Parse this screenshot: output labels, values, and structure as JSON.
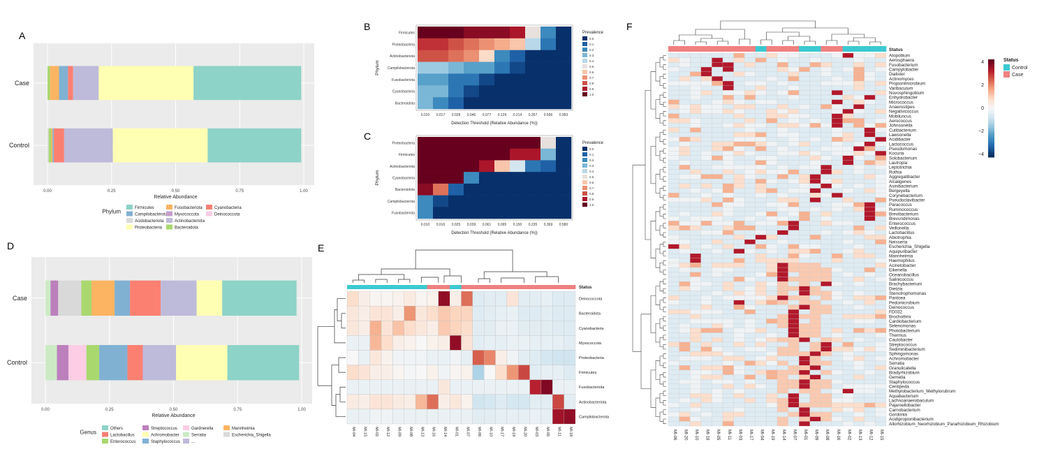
{
  "panel_labels": {
    "a": "A",
    "b": "B",
    "c": "C",
    "d": "D",
    "e": "E",
    "f": "F"
  },
  "chart_data": [
    {
      "id": "A",
      "type": "bar",
      "orientation": "horizontal",
      "stacked": true,
      "categories": [
        "Case",
        "Control"
      ],
      "xlabel": "Relative Abundance",
      "xlim": [
        0,
        1
      ],
      "xticks": [
        "0.00",
        "0.25",
        "0.50",
        "0.75",
        "1.00"
      ],
      "legend_title": "Phylum",
      "legend_placement": "bottom",
      "series": [
        {
          "name": "Acidobacteriota",
          "color": "#d9d9d9",
          "values": [
            0.0,
            0.005
          ]
        },
        {
          "name": "Myxococcota",
          "color": "#c6a0cf",
          "values": [
            0.0,
            0.0
          ]
        },
        {
          "name": "Bacteroidota",
          "color": "#a9d86e",
          "values": [
            0.01,
            0.01
          ]
        },
        {
          "name": "Fusobacteriota",
          "color": "#fdb462",
          "values": [
            0.035,
            0.005
          ]
        },
        {
          "name": "Campilobacterota",
          "color": "#80b1d3",
          "values": [
            0.035,
            0.005
          ]
        },
        {
          "name": "Cyanobacteria",
          "color": "#fb8072",
          "values": [
            0.02,
            0.04
          ]
        },
        {
          "name": "Actinobacteriota",
          "color": "#bebada",
          "values": [
            0.1,
            0.19
          ]
        },
        {
          "name": "Proteobacteria",
          "color": "#ffffb3",
          "values": [
            0.37,
            0.37
          ]
        },
        {
          "name": "Firmicutes",
          "color": "#8dd3c7",
          "values": [
            0.42,
            0.365
          ]
        }
      ],
      "legend_order": [
        "Firmicutes",
        "Campilobacterota",
        "Acidobacteriota",
        "Proteobacteria",
        "Fusobacteriota",
        "Myxococcota",
        "Actinobacteriota",
        "Bacteroidota",
        "Cyanobacteria",
        "Deinococcota"
      ],
      "legend_colors": {
        "Firmicutes": "#8dd3c7",
        "Campilobacterota": "#80b1d3",
        "Acidobacteriota": "#d9d9d9",
        "Proteobacteria": "#ffffb3",
        "Fusobacteriota": "#fdb462",
        "Myxococcota": "#c6a0cf",
        "Actinobacteriota": "#bebada",
        "Bacteroidota": "#a9d86e",
        "Cyanobacteria": "#fb8072",
        "Deinococcota": "#fccde5"
      }
    },
    {
      "id": "B",
      "type": "heatmap",
      "ylabel": "Phylum",
      "xlabel": "Detection Threshold (Relative Abundance (%))",
      "rows": [
        "Firmicutes",
        "Proteobacteria",
        "Actinobacteriota",
        "Campilobacterota",
        "Fusobacteriota",
        "Cyanobacteria",
        "Bacteroidota"
      ],
      "cols": [
        "0.010",
        "0.017",
        "0.028",
        "0.046",
        "0.077",
        "0.129",
        "0.214",
        "0.357",
        "0.596",
        "0.993"
      ],
      "legend_title": "Prevalence",
      "legend_ticks": [
        "0.0",
        "0.1",
        "0.2",
        "0.3",
        "0.4",
        "0.5",
        "0.6",
        "0.7",
        "0.8",
        "0.9",
        "1.0"
      ],
      "values": [
        [
          1.0,
          1.0,
          1.0,
          0.95,
          0.95,
          0.95,
          0.9,
          0.5,
          0.2,
          0.0
        ],
        [
          0.85,
          0.85,
          0.8,
          0.75,
          0.7,
          0.65,
          0.6,
          0.4,
          0.15,
          0.0
        ],
        [
          0.8,
          0.8,
          0.75,
          0.7,
          0.55,
          0.2,
          0.1,
          0.0,
          0.0,
          0.0
        ],
        [
          0.35,
          0.35,
          0.3,
          0.25,
          0.25,
          0.15,
          0.05,
          0.0,
          0.0,
          0.0
        ],
        [
          0.25,
          0.25,
          0.15,
          0.15,
          0.05,
          0.0,
          0.0,
          0.0,
          0.0,
          0.0
        ],
        [
          0.3,
          0.3,
          0.15,
          0.05,
          0.0,
          0.0,
          0.0,
          0.0,
          0.0,
          0.0
        ],
        [
          0.3,
          0.2,
          0.1,
          0.0,
          0.0,
          0.0,
          0.0,
          0.0,
          0.0,
          0.0
        ]
      ]
    },
    {
      "id": "C",
      "type": "heatmap",
      "ylabel": "Phylum",
      "xlabel": "Detection Threshold (Relative Abundance (%))",
      "rows": [
        "Proteobacteria",
        "Firmicutes",
        "Actinobacteriota",
        "Cyanobacteria",
        "Bacteroidota",
        "Campilobacterota",
        "Fusobacteriota"
      ],
      "cols": [
        "0.010",
        "0.016",
        "0.025",
        "0.039",
        "0.061",
        "0.095",
        "0.150",
        "0.235",
        "0.369",
        "0.580"
      ],
      "legend_title": "Prevalence",
      "legend_ticks": [
        "0.0",
        "0.1",
        "0.2",
        "0.3",
        "0.4",
        "0.5",
        "0.6",
        "0.7",
        "0.8",
        "0.9",
        "1.0"
      ],
      "values": [
        [
          1.0,
          1.0,
          1.0,
          1.0,
          1.0,
          1.0,
          1.0,
          1.0,
          0.5,
          0.0
        ],
        [
          1.0,
          1.0,
          1.0,
          1.0,
          1.0,
          1.0,
          0.9,
          0.9,
          0.3,
          0.0
        ],
        [
          1.0,
          1.0,
          1.0,
          1.0,
          0.9,
          0.6,
          0.45,
          0.15,
          0.1,
          0.0
        ],
        [
          1.0,
          1.0,
          1.0,
          0.2,
          0.0,
          0.0,
          0.0,
          0.0,
          0.0,
          0.0
        ],
        [
          0.95,
          0.75,
          0.1,
          0.0,
          0.0,
          0.0,
          0.0,
          0.0,
          0.0,
          0.0
        ],
        [
          0.2,
          0.05,
          0.0,
          0.0,
          0.0,
          0.0,
          0.0,
          0.0,
          0.0,
          0.0
        ],
        [
          0.2,
          0.0,
          0.0,
          0.0,
          0.0,
          0.0,
          0.0,
          0.0,
          0.0,
          0.0
        ]
      ]
    },
    {
      "id": "D",
      "type": "bar",
      "orientation": "horizontal",
      "stacked": true,
      "categories": [
        "Case",
        "Control"
      ],
      "xlabel": "Relative Abundance",
      "xlim": [
        0,
        1
      ],
      "xticks": [
        "0.00",
        "0.25",
        "0.50",
        "0.75",
        "1.00"
      ],
      "legend_title": "Genus",
      "legend_placement": "bottom",
      "series": [
        {
          "name": "Serratia",
          "color": "#ccebc5",
          "values": [
            0.02,
            0.045
          ]
        },
        {
          "name": "Streptococcus",
          "color": "#bc80bd",
          "values": [
            0.03,
            0.045
          ]
        },
        {
          "name": "Escherichia_Shigella",
          "color": "#d9d9d9",
          "values": [
            0.09,
            0.0
          ]
        },
        {
          "name": "Gardnerella",
          "color": "#fccde5",
          "values": [
            0.0,
            0.07
          ]
        },
        {
          "name": "Enterococcus",
          "color": "#a9d86e",
          "values": [
            0.04,
            0.05
          ]
        },
        {
          "name": "Mannheimia",
          "color": "#fdb462",
          "values": [
            0.09,
            0.0
          ]
        },
        {
          "name": "Staphylococcus",
          "color": "#80b1d3",
          "values": [
            0.06,
            0.11
          ]
        },
        {
          "name": "Lactobacillus",
          "color": "#fb8072",
          "values": [
            0.12,
            0.06
          ]
        },
        {
          "name": "...",
          "color": "#bebada",
          "values": [
            0.14,
            0.13
          ]
        },
        {
          "name": "Achromobacter",
          "color": "#ffffb3",
          "values": [
            0.1,
            0.2
          ]
        },
        {
          "name": "Others",
          "color": "#8dd3c7",
          "values": [
            0.29,
            0.28
          ]
        }
      ],
      "legend_order": [
        "Others",
        "Lactobacillus",
        "Enterococcus",
        "Streptococcus",
        "Achromobacter",
        "Staphylococcus",
        "Gardnerella",
        "Serratia",
        "...",
        "Mannheimia",
        "Escherichia_Shigella"
      ],
      "legend_colors": {
        "Others": "#8dd3c7",
        "Lactobacillus": "#fb8072",
        "Enterococcus": "#a9d86e",
        "Streptococcus": "#bc80bd",
        "Achromobacter": "#ffffb3",
        "Staphylococcus": "#80b1d3",
        "Gardnerella": "#fccde5",
        "Serratia": "#ccebc5",
        "...": "#bebada",
        "Mannheimia": "#fdb462",
        "Escherichia_Shigella": "#d9d9d9"
      }
    },
    {
      "id": "E",
      "type": "heatmap",
      "annotation_label": "Status",
      "rows": [
        "Deinococcota",
        "Bacteroidota",
        "Cyanobacteria",
        "Myxococcota",
        "Proteobacteria",
        "Firmicutes",
        "Fusobacteriota",
        "Actinobacteriota",
        "Campilobacterota"
      ],
      "cols": [
        "MI-04",
        "MI-15",
        "MI-02",
        "MI-12",
        "MI-09",
        "MI-08",
        "MI-13",
        "MI-16",
        "MI-14",
        "MI-01",
        "MI-07",
        "MI-06",
        "MI-10",
        "MI-17",
        "MI-19",
        "MI-20",
        "MI-03",
        "MI-05",
        "MI-11",
        "MI-18"
      ],
      "status": [
        "Control",
        "Control",
        "Control",
        "Control",
        "Control",
        "Control",
        "Control",
        "Case",
        "Case",
        "Control",
        "Case",
        "Case",
        "Case",
        "Case",
        "Case",
        "Case",
        "Case",
        "Case",
        "Case",
        "Case"
      ],
      "values": [
        [
          0.8,
          0.3,
          0.1,
          0.1,
          0.2,
          0.4,
          0.1,
          0.2,
          4.0,
          0.3,
          2.5,
          -0.6,
          -0.5,
          -0.5,
          0.6,
          -0.5,
          -0.5,
          -0.4,
          -0.6,
          -0.6
        ],
        [
          0.5,
          0.3,
          0.6,
          0.6,
          0.3,
          2.0,
          0.5,
          0.8,
          1.2,
          1.0,
          1.0,
          -0.6,
          -0.5,
          -0.4,
          -0.3,
          -0.6,
          -0.6,
          -0.5,
          -0.6,
          -0.6
        ],
        [
          0.5,
          0.3,
          1.6,
          0.6,
          1.3,
          0.8,
          0.5,
          0.3,
          1.2,
          1.0,
          0.8,
          -0.5,
          -0.5,
          -0.3,
          -0.3,
          -0.5,
          -0.5,
          -0.5,
          -0.6,
          -0.6
        ],
        [
          -0.3,
          -0.3,
          1.5,
          0.8,
          0.3,
          0.2,
          0.0,
          0.2,
          0.3,
          4.0,
          0.6,
          -0.5,
          -0.4,
          -0.4,
          -0.3,
          -0.3,
          -0.4,
          -0.4,
          -0.4,
          -0.5
        ],
        [
          0.0,
          -0.3,
          0.5,
          0.2,
          -0.2,
          -0.2,
          -0.2,
          -0.3,
          -0.3,
          -0.2,
          -0.4,
          2.7,
          2.2,
          0.3,
          -0.2,
          -0.5,
          -0.6,
          -0.8,
          -0.9,
          -0.9
        ],
        [
          0.8,
          0.6,
          0.3,
          0.3,
          0.1,
          -0.1,
          0.0,
          0.2,
          -0.2,
          0.1,
          0.2,
          -1.4,
          0.0,
          0.8,
          2.0,
          3.0,
          -0.5,
          -0.4,
          -0.4,
          -0.6
        ],
        [
          -0.3,
          -0.3,
          -0.3,
          -0.3,
          -0.3,
          -0.3,
          -0.3,
          -0.3,
          0.5,
          -0.3,
          -0.3,
          -0.3,
          -0.3,
          -0.3,
          -0.3,
          -0.3,
          3.5,
          4.2,
          -0.3,
          -0.3
        ],
        [
          0.4,
          0.3,
          0.6,
          0.6,
          0.4,
          0.3,
          1.5,
          2.5,
          0.3,
          0.5,
          0.2,
          -0.9,
          -0.8,
          -0.6,
          -0.8,
          -0.8,
          -0.5,
          -0.5,
          3.0,
          -0.5
        ],
        [
          -0.3,
          -0.3,
          -0.2,
          -0.2,
          -0.3,
          -0.3,
          -0.3,
          -0.3,
          -0.3,
          -0.3,
          -0.3,
          -0.5,
          -0.5,
          -0.4,
          -0.4,
          -0.4,
          -0.3,
          -0.4,
          3.8,
          4.0
        ]
      ]
    },
    {
      "id": "F",
      "type": "heatmap",
      "annotation_label": "Status",
      "legend_title": "Status",
      "legend_entries": [
        {
          "name": "Control",
          "color": "#3cc9d2"
        },
        {
          "name": "Case",
          "color": "#f08080"
        }
      ],
      "colorbar_ticks": [
        "4",
        "2",
        "0",
        "−2",
        "−4"
      ],
      "cols": [
        "MI-06",
        "MI-20",
        "MI-10",
        "MI-18",
        "MI-05",
        "MI-11",
        "MI-03",
        "MI-17",
        "MI-04",
        "MI-19",
        "MI-14",
        "MI-07",
        "MI-01",
        "MI-09",
        "MI-08",
        "MI-16",
        "MI-02",
        "MI-13",
        "MI-12",
        "MI-15"
      ],
      "status": [
        "Case",
        "Case",
        "Case",
        "Case",
        "Case",
        "Case",
        "Case",
        "Case",
        "Control",
        "Case",
        "Case",
        "Case",
        "Control",
        "Control",
        "Case",
        "Case",
        "Control",
        "Control",
        "Control",
        "Control"
      ],
      "rows": [
        "Atopobium",
        "Aerosphaera",
        "Fusobacterium",
        "Campylobacter",
        "Dialister",
        "Actinomyces",
        "Propionimicrobium",
        "Varibaculum",
        "Novosphingobium",
        "Enhydrobacter",
        "Micrococcus",
        "Anaerostipes",
        "Negativicoccus",
        "Mobiluncus",
        "Aerococcus",
        "Johnsonella",
        "Cutibacterium",
        "Lawsonella",
        "Acidibacter",
        "Lactococcus",
        "Pseudomonas",
        "Kocuria",
        "Solobacterium",
        "Lautropia",
        "Leptotrichia",
        "Rothia",
        "Aggregatibacter",
        "Alcaligenes",
        "Asinibacterium",
        "Bergeyella",
        "Corynebacterium",
        "Pseudoclavibacter",
        "Paracoccus",
        "Ruminococcus",
        "Brevibacterium",
        "Brevundimonas",
        "Enterococcus",
        "Veillonella",
        "Lactobacillus",
        "Abiotrophia",
        "Neisseria",
        "Escherichia_Shigella",
        "Aquipuribacter",
        "Mannheimia",
        "Haemophilus",
        "Acinetobacter",
        "Eikenella",
        "Oceanobacillus",
        "Salinicoccus",
        "Brachybacterium",
        "Dietzia",
        "Stenotrophomonas",
        "Pantoea",
        "Pedomicrobium",
        "Deinococcus",
        "FD032",
        "Brochothrix",
        "Cardiobacterium",
        "Selenomonas",
        "Photobacterium",
        "Thermus",
        "Caulobacter",
        "Streptococcus",
        "Sediminibacterium",
        "Sphingomonas",
        "Achromobacter",
        "Serratia",
        "Granulicatella",
        "Bradyrhizobium",
        "Gemella",
        "Staphylococcus",
        "Centipeda",
        "Methylobacterium_Methylorubrum",
        "Aquabacterium",
        "Lachnoanaerobaculum",
        "Pajaroellobacter",
        "Carnobacterium",
        "Gordonia",
        "Acidipropionibacterium",
        "Allorhizobium_Neorhizobium_Pararhizobium_Rhizobium"
      ]
    }
  ]
}
